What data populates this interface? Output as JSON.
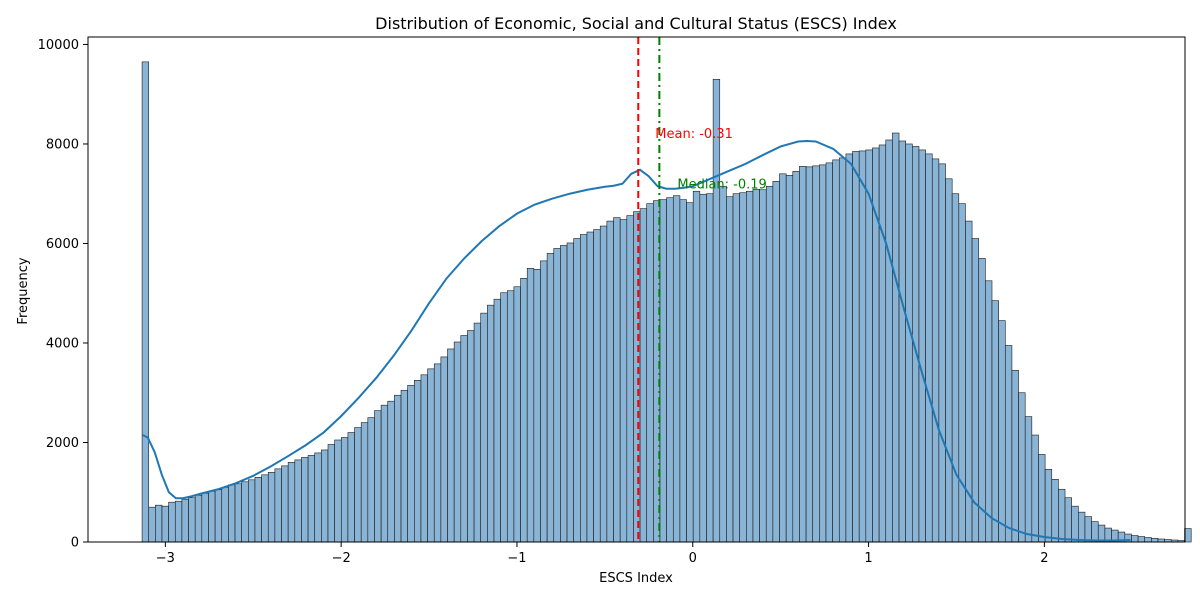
{
  "chart_data": {
    "type": "bar",
    "title": "Distribution of Economic, Social and Cultural Status (ESCS) Index",
    "xlabel": "ESCS Index",
    "ylabel": "Frequency",
    "xlim": [
      -3.44,
      2.8
    ],
    "ylim": [
      0,
      10150
    ],
    "x_ticks": [
      -3,
      -2,
      -1,
      0,
      1,
      2
    ],
    "x_tick_labels": [
      "−3",
      "−2",
      "−1",
      "0",
      "1",
      "2"
    ],
    "y_ticks": [
      0,
      2000,
      4000,
      6000,
      8000,
      10000
    ],
    "y_tick_labels": [
      "0",
      "2000",
      "4000",
      "6000",
      "8000",
      "10000"
    ],
    "grid": false,
    "bins": {
      "start": -3.1324,
      "width": 0.03777,
      "counts": [
        9650,
        700,
        740,
        720,
        800,
        820,
        860,
        890,
        940,
        980,
        1020,
        1050,
        1100,
        1150,
        1170,
        1210,
        1250,
        1300,
        1350,
        1400,
        1470,
        1530,
        1600,
        1650,
        1700,
        1740,
        1790,
        1850,
        1960,
        2050,
        2100,
        2200,
        2300,
        2400,
        2500,
        2640,
        2750,
        2830,
        2950,
        3050,
        3150,
        3250,
        3360,
        3480,
        3580,
        3720,
        3880,
        4020,
        4150,
        4250,
        4400,
        4600,
        4760,
        4880,
        5010,
        5050,
        5130,
        5300,
        5500,
        5480,
        5650,
        5800,
        5900,
        5960,
        6010,
        6100,
        6180,
        6230,
        6280,
        6350,
        6450,
        6520,
        6480,
        6560,
        6640,
        6700,
        6800,
        6860,
        6880,
        6920,
        6960,
        6880,
        6820,
        7050,
        6990,
        7000,
        9300,
        7150,
        6940,
        7000,
        7020,
        7050,
        7090,
        7080,
        7150,
        7250,
        7400,
        7370,
        7450,
        7550,
        7540,
        7560,
        7580,
        7620,
        7680,
        7720,
        7800,
        7850,
        7860,
        7880,
        7920,
        7980,
        8080,
        8220,
        8060,
        8000,
        7950,
        7880,
        7800,
        7700,
        7600,
        7300,
        7000,
        6800,
        6450,
        6100,
        5700,
        5250,
        4850,
        4450,
        3950,
        3450,
        3000,
        2520,
        2150,
        1760,
        1460,
        1260,
        1060,
        890,
        720,
        600,
        510,
        410,
        340,
        280,
        240,
        200,
        160,
        130,
        110,
        90,
        75,
        60,
        50,
        40,
        30,
        270
      ]
    },
    "kde": {
      "x": [
        -3.13,
        -3.1,
        -3.06,
        -3.02,
        -2.98,
        -2.94,
        -2.9,
        -2.85,
        -2.8,
        -2.7,
        -2.6,
        -2.5,
        -2.4,
        -2.3,
        -2.2,
        -2.1,
        -2.0,
        -1.9,
        -1.8,
        -1.7,
        -1.6,
        -1.5,
        -1.4,
        -1.3,
        -1.2,
        -1.1,
        -1.0,
        -0.9,
        -0.8,
        -0.7,
        -0.6,
        -0.5,
        -0.45,
        -0.4,
        -0.35,
        -0.3,
        -0.25,
        -0.2,
        -0.15,
        -0.1,
        -0.05,
        0,
        0.1,
        0.2,
        0.3,
        0.4,
        0.5,
        0.6,
        0.65,
        0.7,
        0.8,
        0.9,
        1.0,
        1.1,
        1.2,
        1.3,
        1.4,
        1.5,
        1.6,
        1.7,
        1.8,
        1.9,
        2.0,
        2.1,
        2.2,
        2.3,
        2.4,
        2.49
      ],
      "y": [
        2150,
        2100,
        1800,
        1350,
        1000,
        880,
        880,
        920,
        970,
        1060,
        1180,
        1330,
        1520,
        1730,
        1950,
        2200,
        2530,
        2900,
        3300,
        3750,
        4250,
        4800,
        5300,
        5700,
        6050,
        6350,
        6600,
        6780,
        6900,
        7000,
        7080,
        7140,
        7160,
        7200,
        7400,
        7480,
        7350,
        7150,
        7100,
        7100,
        7120,
        7150,
        7300,
        7450,
        7600,
        7780,
        7950,
        8050,
        8060,
        8050,
        7900,
        7600,
        7000,
        6000,
        4700,
        3450,
        2250,
        1350,
        800,
        480,
        280,
        160,
        100,
        60,
        40,
        30,
        30,
        40
      ]
    },
    "mean": -0.31,
    "median": -0.19,
    "mean_label": "Mean: -0.31",
    "median_label": "Median: -0.19",
    "mean_color": "#ff0000",
    "median_color": "#008000",
    "bar_color": "#8ab4d6",
    "kde_color": "#1f77b4"
  }
}
